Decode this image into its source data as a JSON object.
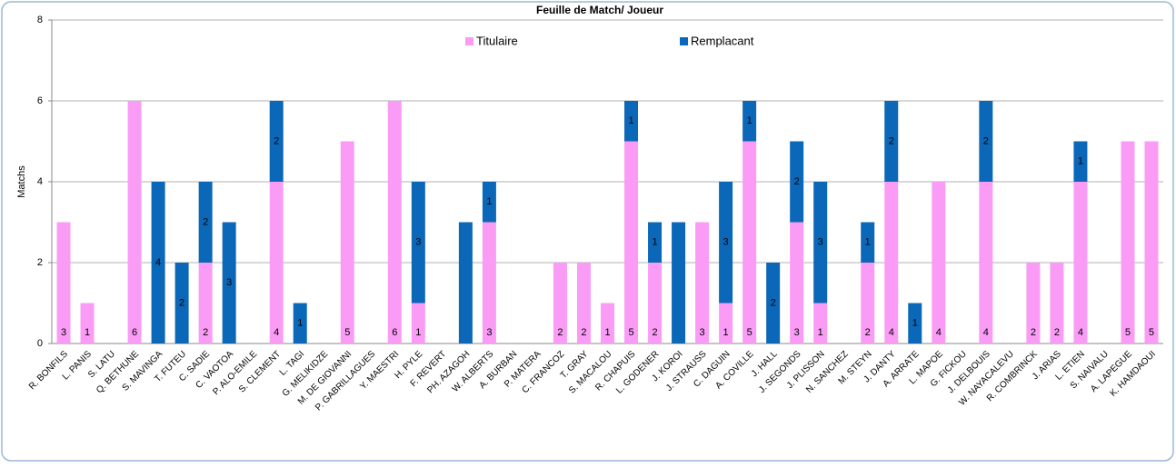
{
  "chart_data": {
    "type": "stacked_bar",
    "title": "Feuille de Match/ Joueur",
    "y_label": "Matchs",
    "categories": [
      "R. BONFILS",
      "L. PANIS",
      "S. LATU",
      "Q. BETHUNE",
      "S. MAVINGA",
      "T. FUTEU",
      "C. SADIE",
      "C. VAOTOA",
      "P. ALO-EMILE",
      "S. CLEMENT",
      "L. TAGI",
      "G. MELIKIDZE",
      "M. DE GIOVANNI",
      "P. GABRILLAGUES",
      "Y. MAESTRI",
      "H. PYLE",
      "F. REVERT",
      "PH. AZAGOH",
      "W. ALBERTS",
      "A. BURBAN",
      "P. MATERA",
      "C. FRANCOZ",
      "T. GRAY",
      "S. MACALOU",
      "R. CHAPUIS",
      "L. GODENER",
      "J. KOROI",
      "J. STRAUSS",
      "C. DAGUIN",
      "A. COVILLE",
      "J. HALL",
      "J. SEGONDS",
      "J. PLISSON",
      "N. SANCHEZ",
      "M. STEYN",
      "J. DANTY",
      "A. ARRATE",
      "L. MAPOE",
      "G. FICKOU",
      "J. DELBOUIS",
      "W. NAYACALEVU",
      "R. COMBRINCK",
      "J. ARIAS",
      "L. ETIEN",
      "S. NAIVALU",
      "A. LAPEGUE",
      "K. HAMDAOUI"
    ],
    "series": [
      {
        "name": "Titulaire",
        "color": "#fa9cf6",
        "values": [
          3,
          1,
          0,
          6,
          0,
          0,
          2,
          0,
          0,
          4,
          0,
          0,
          5,
          0,
          6,
          1,
          0,
          0,
          3,
          0,
          0,
          2,
          2,
          1,
          5,
          2,
          0,
          3,
          1,
          5,
          0,
          3,
          1,
          0,
          2,
          4,
          0,
          4,
          0,
          4,
          0,
          2,
          2,
          4,
          0,
          5,
          5
        ],
        "value_labels": [
          "3",
          "1",
          null,
          "6",
          null,
          null,
          "2",
          null,
          null,
          "4",
          null,
          null,
          "5",
          null,
          "6",
          "1",
          null,
          "0",
          "3",
          null,
          null,
          "2",
          "2",
          "1",
          "5",
          "2",
          "0",
          "3",
          "1",
          "5",
          null,
          "3",
          "1",
          null,
          "2",
          "4",
          null,
          "4",
          null,
          "4",
          null,
          "2",
          "2",
          "4",
          null,
          "5",
          "5"
        ]
      },
      {
        "name": "Remplacant",
        "color": "#0b67b8",
        "values": [
          0,
          0,
          0,
          0,
          4,
          2,
          2,
          3,
          0,
          2,
          1,
          0,
          0,
          0,
          0,
          3,
          0,
          3,
          1,
          0,
          0,
          0,
          0,
          0,
          1,
          1,
          3,
          0,
          3,
          1,
          2,
          2,
          3,
          0,
          1,
          2,
          1,
          0,
          0,
          2,
          0,
          0,
          0,
          1,
          0,
          0,
          0
        ],
        "value_labels": [
          null,
          null,
          null,
          null,
          "4",
          "2",
          "2",
          "3",
          null,
          "2",
          "1",
          null,
          null,
          null,
          null,
          "3",
          null,
          null,
          "1",
          null,
          null,
          null,
          null,
          null,
          "1",
          "1",
          null,
          null,
          "3",
          "1",
          "2",
          "2",
          "3",
          null,
          "1",
          "2",
          "1",
          null,
          null,
          "2",
          null,
          null,
          null,
          "1",
          null,
          null,
          null
        ]
      }
    ],
    "ylim": [
      0,
      8
    ],
    "yticks": [
      0,
      2,
      4,
      6,
      8
    ],
    "grid": true
  }
}
